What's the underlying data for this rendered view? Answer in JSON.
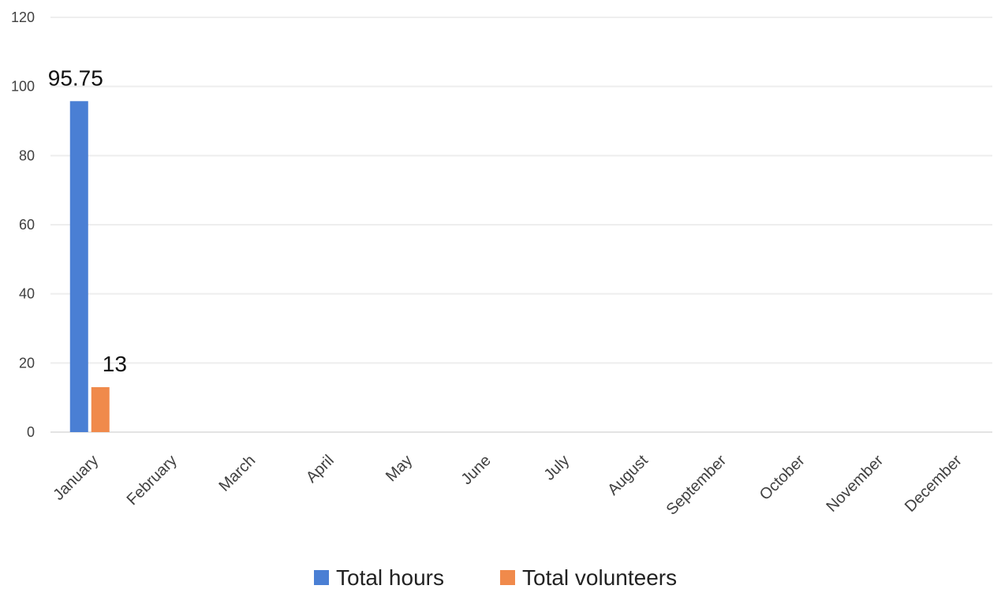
{
  "chart_data": {
    "type": "bar",
    "title": "",
    "xlabel": "",
    "ylabel": "",
    "ylim": [
      0,
      120
    ],
    "yticks": [
      "0",
      "20",
      "40",
      "60",
      "80",
      "100",
      "120"
    ],
    "grid": true,
    "legend_position": "bottom",
    "categories": [
      "January",
      "February",
      "March",
      "April",
      "May",
      "June",
      "July",
      "August",
      "September",
      "October",
      "November",
      "December"
    ],
    "series": [
      {
        "name": "Total hours",
        "color": "#4a7fd4",
        "values": [
          95.75,
          null,
          null,
          null,
          null,
          null,
          null,
          null,
          null,
          null,
          null,
          null
        ],
        "data_labels": [
          "95.75",
          "",
          "",
          "",
          "",
          "",
          "",
          "",
          "",
          "",
          "",
          ""
        ]
      },
      {
        "name": "Total volunteers",
        "color": "#f08a4b",
        "values": [
          13,
          null,
          null,
          null,
          null,
          null,
          null,
          null,
          null,
          null,
          null,
          null
        ],
        "data_labels": [
          "13",
          "",
          "",
          "",
          "",
          "",
          "",
          "",
          "",
          "",
          "",
          ""
        ]
      }
    ]
  }
}
